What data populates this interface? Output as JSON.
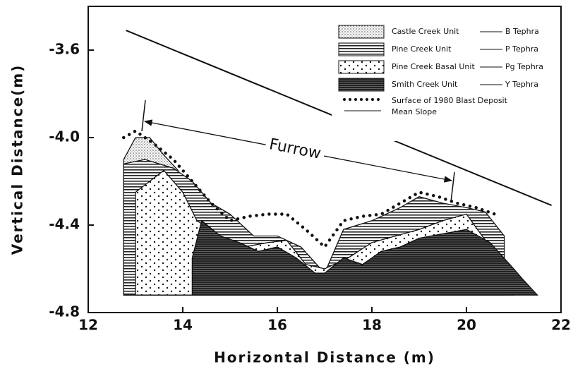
{
  "chart_data": {
    "type": "area",
    "xlabel": "Horizontal Distance (m)",
    "ylabel": "Vertical Distance(m)",
    "xlim": [
      12,
      22
    ],
    "ylim": [
      -4.8,
      -3.4
    ],
    "xticks": [
      12,
      14,
      16,
      18,
      20,
      22
    ],
    "yticks": [
      -3.6,
      {
        "value": -4.0,
        "label": "-4.0"
      },
      -4.4,
      -4.8
    ],
    "base": -4.72,
    "annotation": "Furrow",
    "series": [
      {
        "name": "Castle Creek Unit",
        "tephra": "B Tephra",
        "pattern": "stipple",
        "x": [
          12.75,
          13.0,
          13.3,
          13.6,
          13.9
        ],
        "values": [
          -4.1,
          -4.0,
          -4.0,
          -4.08,
          -4.15
        ]
      },
      {
        "name": "Pine Creek Unit",
        "tephra": "P Tephra",
        "pattern": "stripes",
        "x": [
          12.75,
          13.2,
          13.8,
          14.2,
          14.6,
          15.0,
          15.5,
          16.0,
          16.5,
          17.0,
          17.4,
          18.0,
          18.6,
          19.0,
          19.5,
          20.0,
          20.4,
          20.8
        ],
        "values": [
          -4.12,
          -4.1,
          -4.14,
          -4.2,
          -4.3,
          -4.35,
          -4.45,
          -4.45,
          -4.5,
          -4.62,
          -4.42,
          -4.38,
          -4.32,
          -4.27,
          -4.3,
          -4.32,
          -4.34,
          -4.45
        ]
      },
      {
        "name": "Pine Creek Basal Unit",
        "tephra": "Pg Tephra",
        "pattern": "dots",
        "x": [
          13.0,
          13.3,
          13.6,
          14.0,
          14.3,
          14.8,
          15.3,
          15.8,
          16.2,
          16.6,
          17.0,
          17.5,
          18.0,
          18.5,
          19.0,
          19.5,
          20.0,
          20.5,
          20.8,
          21.0
        ],
        "values": [
          -4.25,
          -4.2,
          -4.15,
          -4.25,
          -4.38,
          -4.45,
          -4.5,
          -4.48,
          -4.47,
          -4.58,
          -4.6,
          -4.55,
          -4.48,
          -4.45,
          -4.42,
          -4.38,
          -4.35,
          -4.5,
          -4.55,
          -4.65
        ]
      },
      {
        "name": "Smith Creek Unit",
        "tephra": "Y Tephra",
        "pattern": "dark",
        "x": [
          14.2,
          14.4,
          14.8,
          15.2,
          15.6,
          16.0,
          16.4,
          16.8,
          17.0,
          17.4,
          17.8,
          18.2,
          18.6,
          19.0,
          19.5,
          20.0,
          20.5,
          21.0,
          21.2,
          21.5
        ],
        "values": [
          -4.55,
          -4.38,
          -4.45,
          -4.48,
          -4.52,
          -4.5,
          -4.55,
          -4.62,
          -4.62,
          -4.55,
          -4.58,
          -4.52,
          -4.5,
          -4.46,
          -4.44,
          -4.42,
          -4.48,
          -4.6,
          -4.65,
          -4.72
        ]
      },
      {
        "name": "Surface of 1980 Blast Deposit",
        "line": "dotted",
        "x": [
          12.75,
          13.0,
          13.4,
          13.8,
          14.2,
          14.6,
          15.0,
          15.4,
          15.8,
          16.2,
          16.6,
          17.0,
          17.4,
          17.8,
          18.2,
          18.6,
          19.0,
          19.4,
          19.8,
          20.2,
          20.6
        ],
        "values": [
          -4.0,
          -3.97,
          -4.03,
          -4.1,
          -4.2,
          -4.3,
          -4.38,
          -4.36,
          -4.35,
          -4.35,
          -4.42,
          -4.5,
          -4.38,
          -4.36,
          -4.35,
          -4.3,
          -4.25,
          -4.27,
          -4.3,
          -4.32,
          -4.35
        ]
      },
      {
        "name": "Mean Slope",
        "line": "solid",
        "x": [
          12.8,
          21.8
        ],
        "values": [
          -3.51,
          -4.31
        ]
      }
    ]
  }
}
